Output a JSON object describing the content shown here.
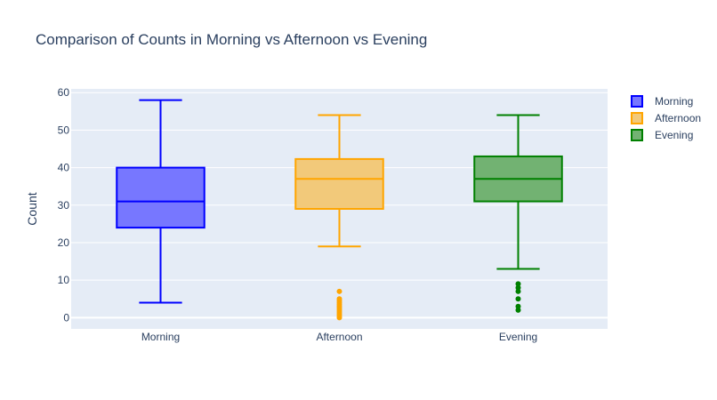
{
  "chart_data": {
    "type": "box",
    "title": "Comparison of Counts in Morning vs Afternoon vs Evening",
    "xlabel": "",
    "ylabel": "Count",
    "ylim": [
      -3,
      61
    ],
    "yticks": [
      0,
      10,
      20,
      30,
      40,
      50,
      60
    ],
    "grid": true,
    "legend_position": "right",
    "categories": [
      "Morning",
      "Afternoon",
      "Evening"
    ],
    "series": [
      {
        "name": "Morning",
        "color": "#0000ff",
        "fill": "#7777ff",
        "lower_whisker": 4,
        "q1": 24,
        "median": 31,
        "q3": 40,
        "upper_whisker": 58,
        "outliers": []
      },
      {
        "name": "Afternoon",
        "color": "#ffa500",
        "fill": "#f2c97a",
        "lower_whisker": 19,
        "q1": 29,
        "median": 37,
        "q3": 42.3,
        "upper_whisker": 54,
        "outliers": [
          0,
          0.5,
          1,
          1.5,
          2,
          2.5,
          3,
          3.5,
          4,
          4.5,
          5,
          7
        ]
      },
      {
        "name": "Evening",
        "color": "#008000",
        "fill": "#72b272",
        "lower_whisker": 13,
        "q1": 31,
        "median": 37,
        "q3": 43,
        "upper_whisker": 54,
        "outliers": [
          2,
          3,
          5,
          7,
          8,
          9
        ]
      }
    ]
  }
}
